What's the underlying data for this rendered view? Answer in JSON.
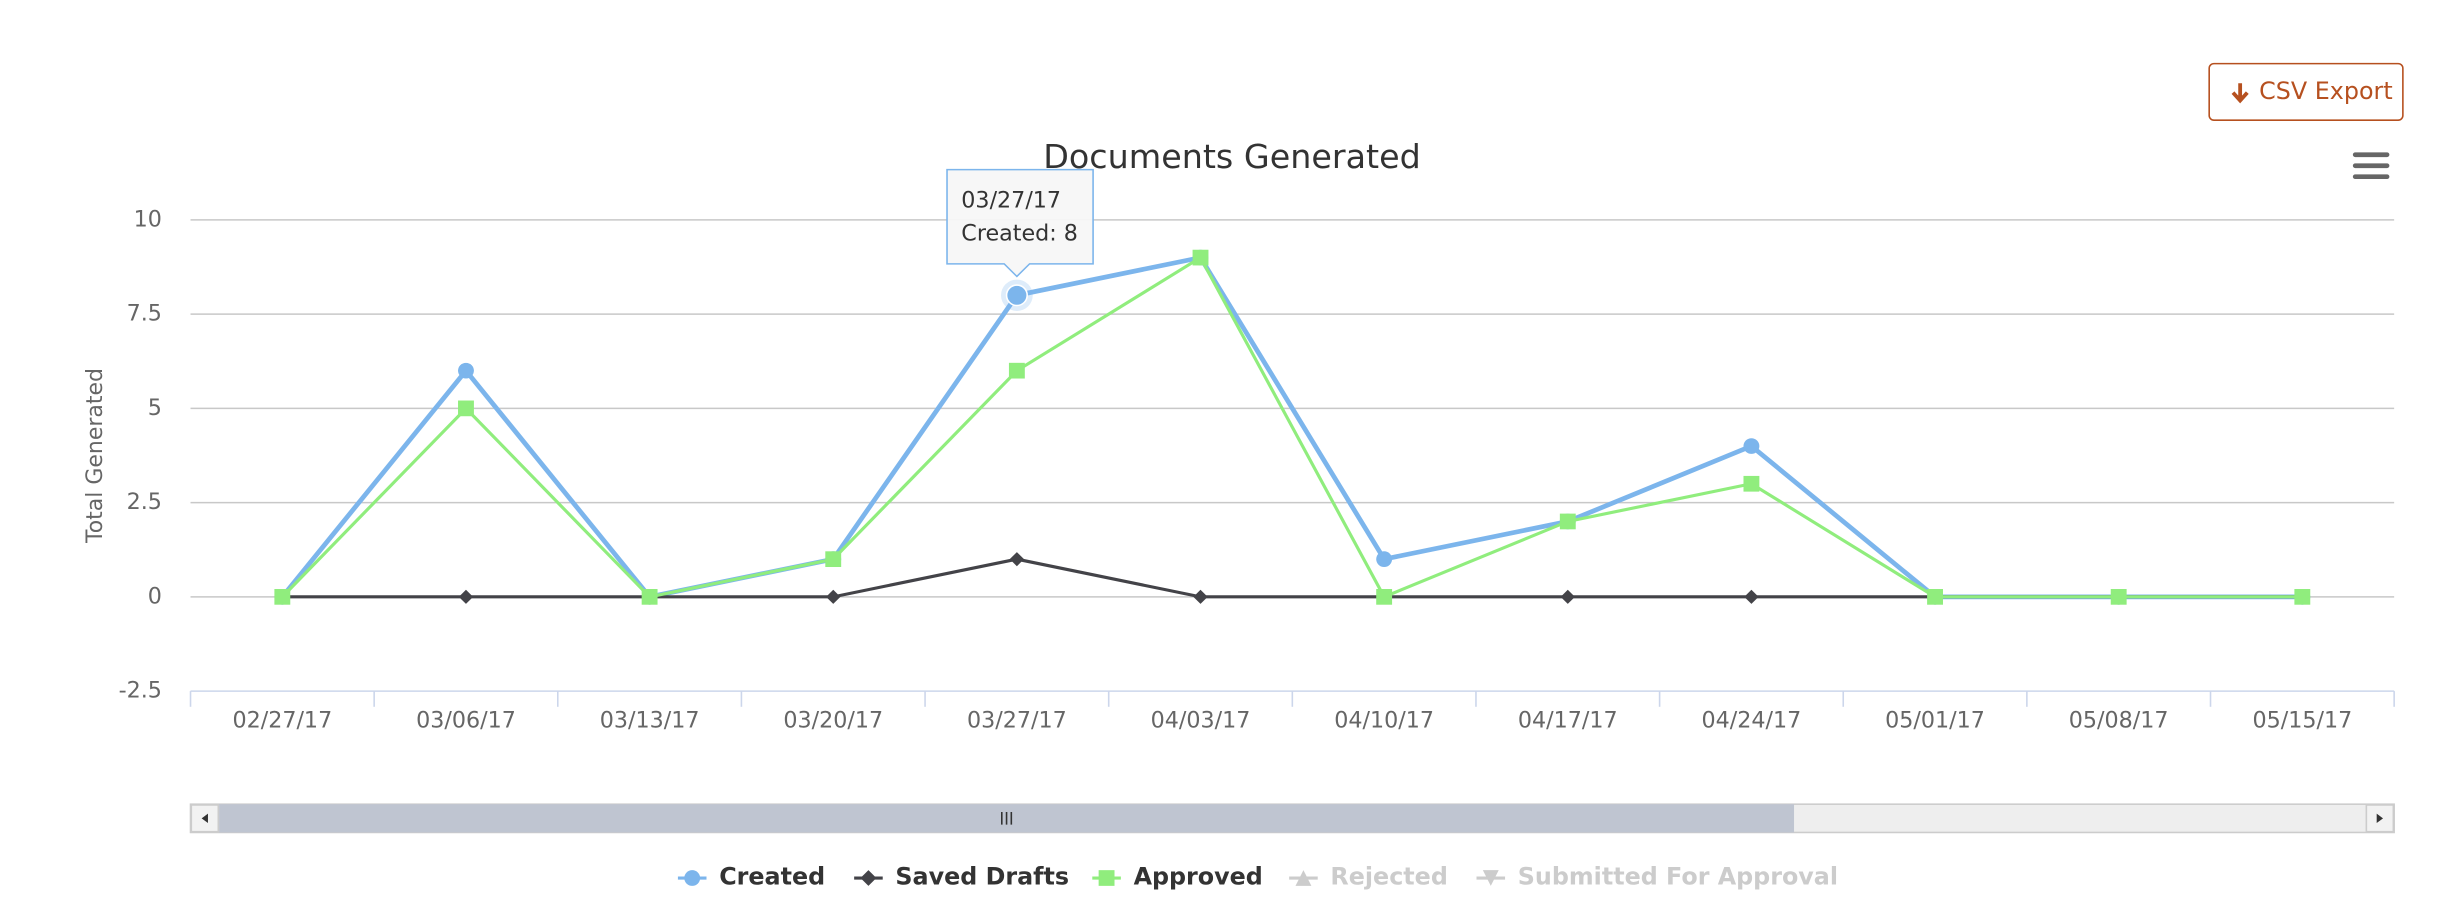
{
  "chart_data": {
    "type": "line",
    "title": "Documents Generated",
    "y_label": "Total Generated",
    "categories": [
      "02/27/17",
      "03/06/17",
      "03/13/17",
      "03/20/17",
      "03/27/17",
      "04/03/17",
      "04/10/17",
      "04/17/17",
      "04/24/17",
      "05/01/17",
      "05/08/17",
      "05/15/17"
    ],
    "series": [
      {
        "name": "Created",
        "color": "#7cb5ec",
        "marker": "circle",
        "values": [
          0,
          6,
          0,
          1,
          8,
          9,
          1,
          2,
          4,
          0,
          0,
          0
        ]
      },
      {
        "name": "Saved Drafts",
        "color": "#434348",
        "marker": "diamond",
        "values": [
          0,
          0,
          0,
          0,
          1,
          0,
          0,
          0,
          0,
          0,
          0,
          0
        ]
      },
      {
        "name": "Approved",
        "color": "#90ed7d",
        "marker": "square",
        "values": [
          0,
          5,
          0,
          1,
          6,
          9,
          0,
          2,
          3,
          0,
          0,
          0
        ]
      },
      {
        "name": "Rejected",
        "marker": "triangle",
        "visible": false
      },
      {
        "name": "Submitted For Approval",
        "marker": "triangle-down",
        "visible": false
      }
    ],
    "ylim": [
      -2.5,
      10
    ],
    "yticks": [
      -2.5,
      0,
      2.5,
      5,
      7.5,
      10
    ],
    "grid": true,
    "legend": "bottom",
    "tooltip": {
      "series": 0,
      "index": 4,
      "title": "03/27/17",
      "text": "Created: 8"
    }
  },
  "export_button": "CSV Export"
}
